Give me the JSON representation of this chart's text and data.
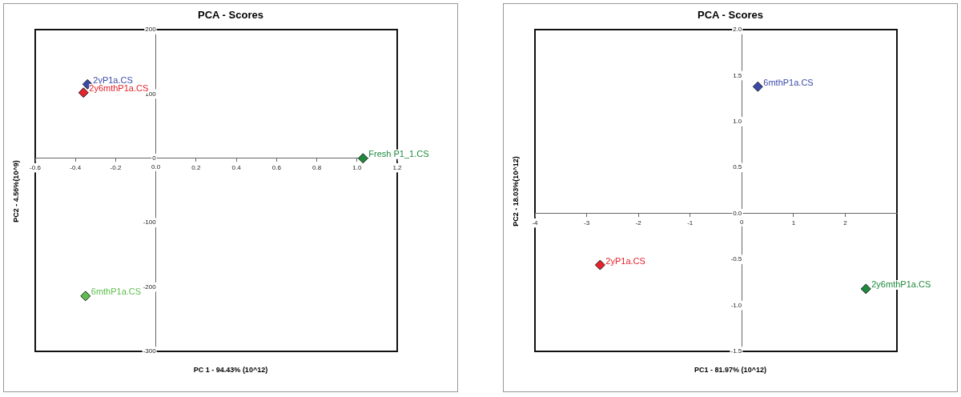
{
  "chart_data": [
    {
      "type": "scatter",
      "title": "PCA - Scores",
      "xlabel": "PC 1 - 94.43% (10^12)",
      "ylabel": "PC2 - 4.56%(10^9)",
      "xlim": [
        -0.6,
        1.2
      ],
      "ylim": [
        -300,
        200
      ],
      "xticks": [
        -0.6,
        -0.4,
        -0.2,
        {
          "value": 0,
          "label": "0.0"
        },
        0.2,
        0.4,
        0.6,
        0.8,
        {
          "value": 1,
          "label": "1.0"
        },
        1.2
      ],
      "yticks": [
        -300,
        -200,
        -100,
        0,
        100,
        200
      ],
      "marker": "diamond",
      "grid": false,
      "legend": false,
      "series": [
        {
          "name": "2yP1a.CS",
          "color": "#3a4aa8",
          "x": [
            -0.34
          ],
          "values": [
            115
          ]
        },
        {
          "name": "2y6mthP1a.CS",
          "color": "#e62129",
          "x": [
            -0.36
          ],
          "values": [
            102
          ]
        },
        {
          "name": "Fresh P1_1.CS",
          "color": "#1e8a3c",
          "x": [
            1.03
          ],
          "values": [
            0
          ]
        },
        {
          "name": "6mthP1a.CS",
          "color": "#5cbf4a",
          "x": [
            -0.35
          ],
          "values": [
            -214
          ]
        }
      ]
    },
    {
      "type": "scatter",
      "title": "PCA - Scores",
      "xlabel": "PC1 - 81.97% (10^12)",
      "ylabel": "PC2 - 18.03%(10^12)",
      "xlim": [
        -4,
        3
      ],
      "ylim": [
        -1.5,
        2
      ],
      "xticks": [
        -4,
        -3,
        -2,
        -1,
        0,
        1,
        2
      ],
      "yticks": [
        {
          "value": -1.5,
          "label": "-1.5"
        },
        {
          "value": -1,
          "label": "-1.0"
        },
        {
          "value": -0.5,
          "label": "-0.5"
        },
        {
          "value": 0,
          "label": "0.0"
        },
        {
          "value": 0.5,
          "label": "0.5"
        },
        {
          "value": 1,
          "label": "1.0"
        },
        {
          "value": 1.5,
          "label": "1.5"
        },
        {
          "value": 2,
          "label": "2.0"
        }
      ],
      "marker": "diamond",
      "grid": false,
      "legend": false,
      "series": [
        {
          "name": "6mthP1a.CS",
          "color": "#3a4aa8",
          "x": [
            0.31
          ],
          "values": [
            1.38
          ]
        },
        {
          "name": "2yP1a.CS",
          "color": "#e62129",
          "x": [
            -2.74
          ],
          "values": [
            -0.56
          ]
        },
        {
          "name": "2y6mthP1a.CS",
          "color": "#1e8a3c",
          "x": [
            2.4
          ],
          "values": [
            -0.82
          ]
        }
      ]
    }
  ]
}
